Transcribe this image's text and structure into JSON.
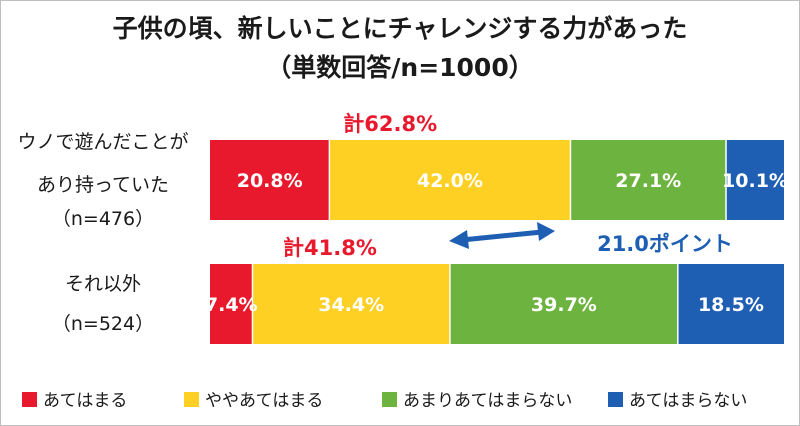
{
  "chart_data": {
    "type": "bar",
    "orientation": "horizontal",
    "stacked": true,
    "title": "子供の頃、新しいことにチャレンジする力があった",
    "subtitle": "（単数回答/n=1000）",
    "categories": [
      [
        "ウノで遊んだことが",
        "あり持っていた",
        "（n=476）"
      ],
      [
        "それ以外",
        "（n=524）"
      ]
    ],
    "series": [
      {
        "name": "あてはまる",
        "values": [
          20.8,
          7.4
        ],
        "labels": [
          "20.8%",
          "7.4%"
        ],
        "color": "#e8192c"
      },
      {
        "name": "ややあてはまる",
        "values": [
          42.0,
          34.4
        ],
        "labels": [
          "42.0%",
          "34.4%"
        ],
        "color": "#fdd023"
      },
      {
        "name": "あまりあてはまらない",
        "values": [
          27.1,
          39.7
        ],
        "labels": [
          "27.1%",
          "39.7%"
        ],
        "color": "#6db33f"
      },
      {
        "name": "あてはまらない",
        "values": [
          10.1,
          18.5
        ],
        "labels": [
          "10.1%",
          "18.5%"
        ],
        "color": "#1f5fb3"
      }
    ],
    "totals": [
      "計62.8%",
      "計41.8%"
    ],
    "difference_annotation": "21.0ポイント",
    "xlim": [
      0,
      100
    ],
    "legend_position": "bottom",
    "grid": false
  }
}
